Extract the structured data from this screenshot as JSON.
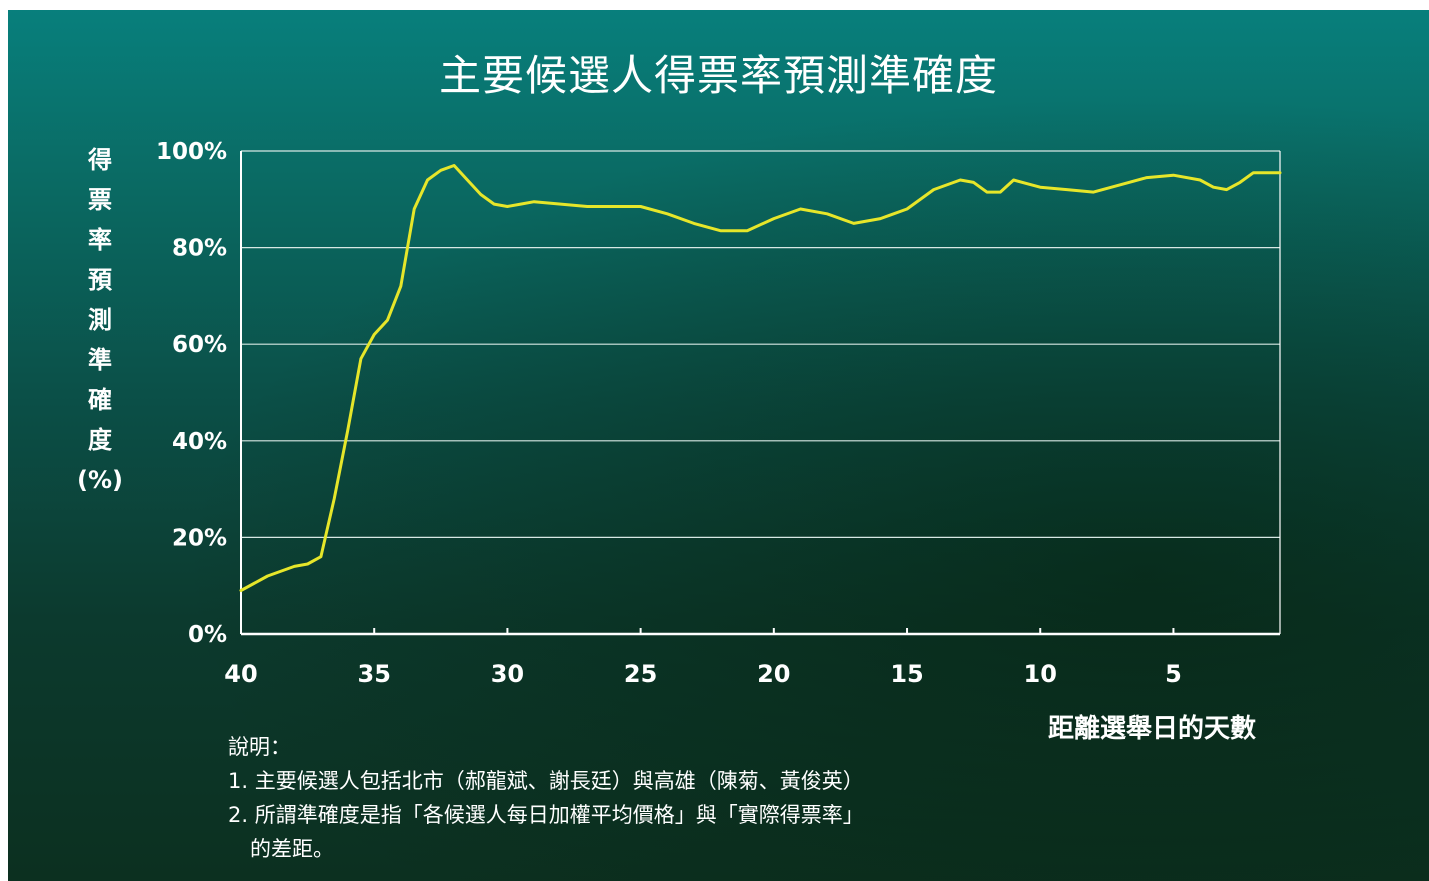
{
  "chart_data": {
    "type": "line",
    "title": "主要候選人得票率預測準確度",
    "ylabel": [
      "得",
      "票",
      "率",
      "預",
      "測",
      "準",
      "確",
      "度",
      "(%)"
    ],
    "xlabel": "距離選舉日的天數",
    "ylim": [
      0,
      100
    ],
    "xlim": [
      40,
      1
    ],
    "x_reversed": true,
    "grid": true,
    "y_ticks": [
      "0%",
      "20%",
      "40%",
      "60%",
      "80%",
      "100%"
    ],
    "x_ticks": [
      "40",
      "35",
      "30",
      "25",
      "20",
      "15",
      "10",
      "5"
    ],
    "series": [
      {
        "name": "",
        "color": "#e6e62a",
        "x": [
          40,
          39,
          38,
          37.5,
          37,
          36.5,
          36,
          35.5,
          35,
          34.5,
          34,
          33.5,
          33,
          32.5,
          32,
          31.5,
          31,
          30.5,
          30,
          29.5,
          29,
          28,
          27,
          26,
          25,
          24,
          23,
          22,
          21,
          20,
          19,
          18,
          17,
          16,
          15,
          14,
          13,
          12.5,
          12,
          11.5,
          11,
          10,
          9,
          8,
          7,
          6,
          5,
          4,
          3.5,
          3,
          2.5,
          2,
          1
        ],
        "y": [
          9,
          12,
          14,
          14.5,
          16,
          28,
          42,
          57,
          62,
          65,
          72,
          88,
          94,
          96,
          97,
          94,
          91,
          89,
          88.5,
          89,
          89.5,
          89,
          88.5,
          88.5,
          88.5,
          87,
          85,
          83.5,
          83.5,
          86,
          88,
          87,
          85,
          86,
          88,
          92,
          94,
          93.5,
          91.5,
          91.5,
          94,
          92.5,
          92,
          91.5,
          93,
          94.5,
          95,
          94,
          92.5,
          92,
          93.5,
          95.5,
          95.5
        ]
      }
    ]
  },
  "notes": {
    "heading": "說明：",
    "line1": "1. 主要候選人包括北市（郝龍斌、謝長廷）與高雄（陳菊、黃俊英）",
    "line2": "2. 所謂準確度是指「各候選人每日加權平均價格」與「實際得票率」",
    "line3": "的差距。"
  }
}
